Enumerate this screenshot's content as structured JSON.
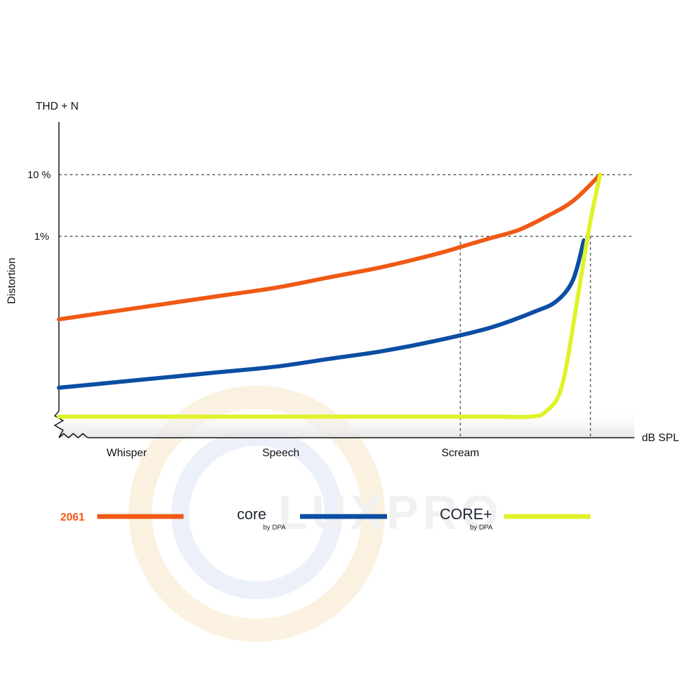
{
  "chart_data": {
    "type": "line",
    "ylabel": "Distortion",
    "ylabel_top": "THD + N",
    "xlabel": "dB SPL",
    "y_ticks": [
      "10 %",
      "1%"
    ],
    "x_categories": [
      "Whisper",
      "Speech",
      "Scream"
    ],
    "y_scale": "log (qualitative)",
    "grid": false,
    "reference_lines": [
      "10 %",
      "1%"
    ],
    "series": [
      {
        "name": "2061",
        "color": "#f05a16",
        "x": [
          0,
          0.1,
          0.2,
          0.3,
          0.4,
          0.5,
          0.6,
          0.7,
          0.75,
          0.8,
          0.85,
          0.9,
          0.95,
          1.0
        ],
        "y": [
          0.45,
          0.48,
          0.51,
          0.54,
          0.57,
          0.61,
          0.65,
          0.7,
          0.73,
          0.76,
          0.79,
          0.84,
          0.9,
          1.0
        ]
      },
      {
        "name": "CORE by DPA",
        "color": "#0b4ea2",
        "x": [
          0,
          0.1,
          0.2,
          0.3,
          0.4,
          0.5,
          0.6,
          0.7,
          0.8,
          0.88,
          0.92,
          0.95,
          0.97
        ],
        "y": [
          0.19,
          0.21,
          0.23,
          0.25,
          0.27,
          0.3,
          0.33,
          0.37,
          0.42,
          0.48,
          0.52,
          0.6,
          0.75
        ]
      },
      {
        "name": "CORE+ by DPA",
        "color": "#dff22a",
        "x": [
          0,
          0.2,
          0.4,
          0.6,
          0.8,
          0.87,
          0.9,
          0.93,
          0.96,
          0.98,
          1.0
        ],
        "y": [
          0.08,
          0.08,
          0.08,
          0.08,
          0.08,
          0.08,
          0.1,
          0.2,
          0.55,
          0.8,
          1.0
        ]
      }
    ],
    "markers": [
      {
        "category": "Scream",
        "ref": "1%"
      },
      {
        "category": "max",
        "ref": "1%"
      }
    ]
  },
  "legend": {
    "items": [
      {
        "label": "2061",
        "color": "#f05a16"
      },
      {
        "label": "core",
        "sub": "by DPA",
        "color": "#0b4ea2"
      },
      {
        "label": "CORE+",
        "sub": "by DPA",
        "color": "#dff22a"
      }
    ]
  },
  "watermark": {
    "text": "LUXPRO"
  }
}
